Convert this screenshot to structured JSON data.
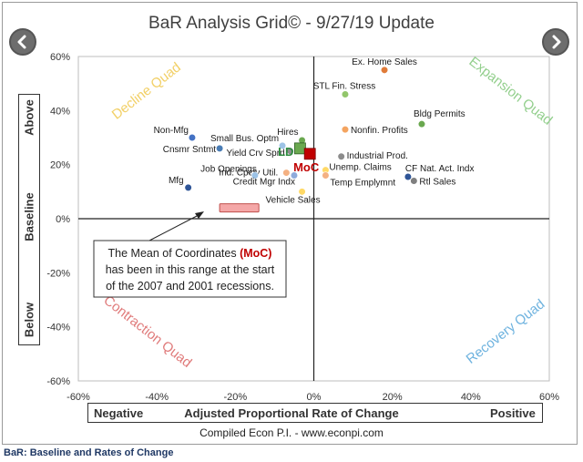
{
  "chart_data": {
    "type": "scatter",
    "title": "BaR Analysis Grid© - 9/27/19 Update",
    "xlabel": "Adjusted Proportional Rate of Change",
    "xlabel_left": "Negative",
    "xlabel_right": "Positive",
    "ylabel_top": "Above",
    "ylabel_mid": "Baseline",
    "ylabel_bottom": "Below",
    "xlim": [
      -60,
      60
    ],
    "ylim": [
      -60,
      60
    ],
    "x_ticks": [
      "-60%",
      "-40%",
      "-20%",
      "0%",
      "20%",
      "40%",
      "60%"
    ],
    "y_ticks": [
      "60%",
      "40%",
      "20%",
      "0%",
      "-20%",
      "-40%",
      "-60%"
    ],
    "quadrants": [
      {
        "label": "Decline Quad",
        "color": "#f2d067"
      },
      {
        "label": "Expansion Quad",
        "color": "#93cf8d"
      },
      {
        "label": "Contraction Quad",
        "color": "#e07b7b"
      },
      {
        "label": "Recovery Quad",
        "color": "#6fb3df"
      }
    ],
    "points": [
      {
        "label": "Ex. Home Sales",
        "x": 18,
        "y": 55,
        "color": "#e07b39"
      },
      {
        "label": "STL Fin. Stress",
        "x": 8,
        "y": 46,
        "color": "#92c66b"
      },
      {
        "label": "Bldg Permits",
        "x": 27.5,
        "y": 35,
        "color": "#6aa84f"
      },
      {
        "label": "Nonfin. Profits",
        "x": 8,
        "y": 33,
        "color": "#f4a460"
      },
      {
        "label": "Hires",
        "x": -3,
        "y": 29,
        "color": "#6aa84f"
      },
      {
        "label": "Industrial Prod.",
        "x": 7,
        "y": 23,
        "color": "#8c8c8c"
      },
      {
        "label": "Non-Mfg",
        "x": -31,
        "y": 30,
        "color": "#4472c4"
      },
      {
        "label": "Small Bus. Optm",
        "x": -8,
        "y": 27,
        "color": "#9dc3e6"
      },
      {
        "label": "Cnsmr Sntmt",
        "x": -24,
        "y": 26,
        "color": "#4a7db5"
      },
      {
        "label": "Yield Crv Sprd",
        "x": -6,
        "y": 25,
        "color": "#8c8c8c"
      },
      {
        "label": "Unemp. Claims",
        "x": 3,
        "y": 18,
        "color": "#ffd966"
      },
      {
        "label": "Ind. Cpcty Util.",
        "x": -7,
        "y": 17,
        "color": "#f4b183"
      },
      {
        "label": "CF Nat. Act. Indx",
        "x": 24,
        "y": 15.5,
        "color": "#2f5597"
      },
      {
        "label": "Job Openings",
        "x": -15,
        "y": 16,
        "color": "#9dc3e6"
      },
      {
        "label": "Temp Emplymnt",
        "x": 3,
        "y": 16,
        "color": "#f4b183"
      },
      {
        "label": "Credit Mgr Indx",
        "x": -5,
        "y": 16,
        "color": "#8eaadb"
      },
      {
        "label": "Rtl Sales",
        "x": 25.5,
        "y": 14,
        "color": "#7f7f7f"
      },
      {
        "label": "Mfg",
        "x": -32,
        "y": 11.5,
        "color": "#2f5597"
      },
      {
        "label": "Vehicle Sales",
        "x": -3,
        "y": 10,
        "color": "#ffd966"
      }
    ],
    "ld_marker": {
      "label": "LD",
      "x": -3.5,
      "y": 26,
      "color": "#6aa84f"
    },
    "moc_marker": {
      "label": "MoC",
      "x": -1,
      "y": 24,
      "color": "#c00000"
    },
    "recession_range": {
      "x_min": -24,
      "x_max": -14,
      "y": 4,
      "color": "#f4a7a7"
    },
    "annotation": {
      "line1_prefix": "The Mean of Coordinates ",
      "line1_highlight": "(MoC)",
      "line2": "has been in this range at the start",
      "line3": "of the 2007 and 2001 recessions.",
      "highlight_color": "#c00000"
    }
  },
  "credit": "Compiled Econ P.I. - www.econpi.com",
  "footnote": "BaR: Baseline and Rates of Change",
  "nav": {
    "prev_icon": "chevron-left-icon",
    "next_icon": "chevron-right-icon"
  }
}
